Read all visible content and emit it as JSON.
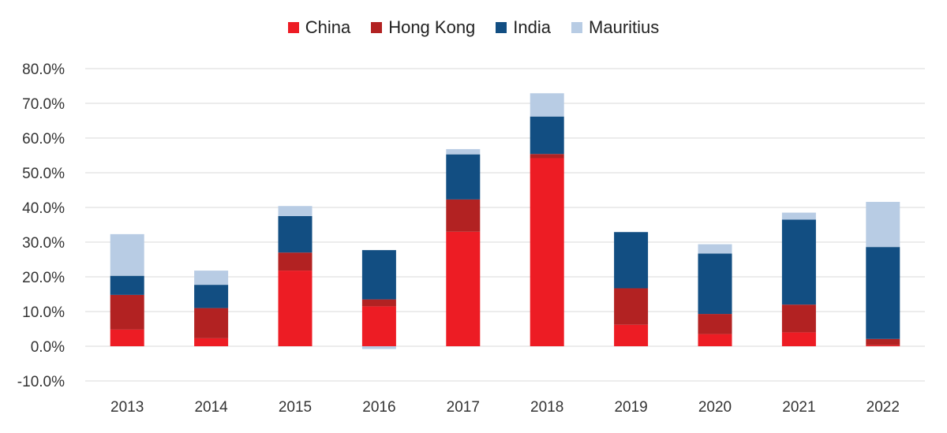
{
  "chart_data": {
    "type": "bar",
    "stacked": true,
    "title": "",
    "xlabel": "",
    "ylabel": "",
    "categories": [
      "2013",
      "2014",
      "2015",
      "2016",
      "2017",
      "2018",
      "2019",
      "2020",
      "2021",
      "2022"
    ],
    "series": [
      {
        "name": "China",
        "color": "#ed1c24",
        "values": [
          4.8,
          2.3,
          21.8,
          11.5,
          33.0,
          54.2,
          6.2,
          3.5,
          4.0,
          0.3
        ]
      },
      {
        "name": "Hong Kong",
        "color": "#b22222",
        "values": [
          10.0,
          8.7,
          5.2,
          2.0,
          9.3,
          1.2,
          10.5,
          5.8,
          8.0,
          1.8
        ]
      },
      {
        "name": "India",
        "color": "#124e82",
        "values": [
          5.5,
          6.7,
          10.5,
          14.2,
          13.0,
          10.8,
          16.2,
          17.4,
          24.5,
          26.5
        ]
      },
      {
        "name": "Mauritius",
        "color": "#b8cce4",
        "values": [
          12.0,
          4.1,
          2.9,
          -0.8,
          1.5,
          6.7,
          0.0,
          2.7,
          2.0,
          13.0
        ]
      }
    ],
    "ylim": [
      -10,
      80
    ],
    "yticks": [
      "-10.0%",
      "0.0%",
      "10.0%",
      "20.0%",
      "30.0%",
      "40.0%",
      "50.0%",
      "60.0%",
      "70.0%",
      "80.0%"
    ],
    "ytick_values": [
      -10,
      0,
      10,
      20,
      30,
      40,
      50,
      60,
      70,
      80
    ],
    "grid": true,
    "legend_position": "top-center"
  }
}
